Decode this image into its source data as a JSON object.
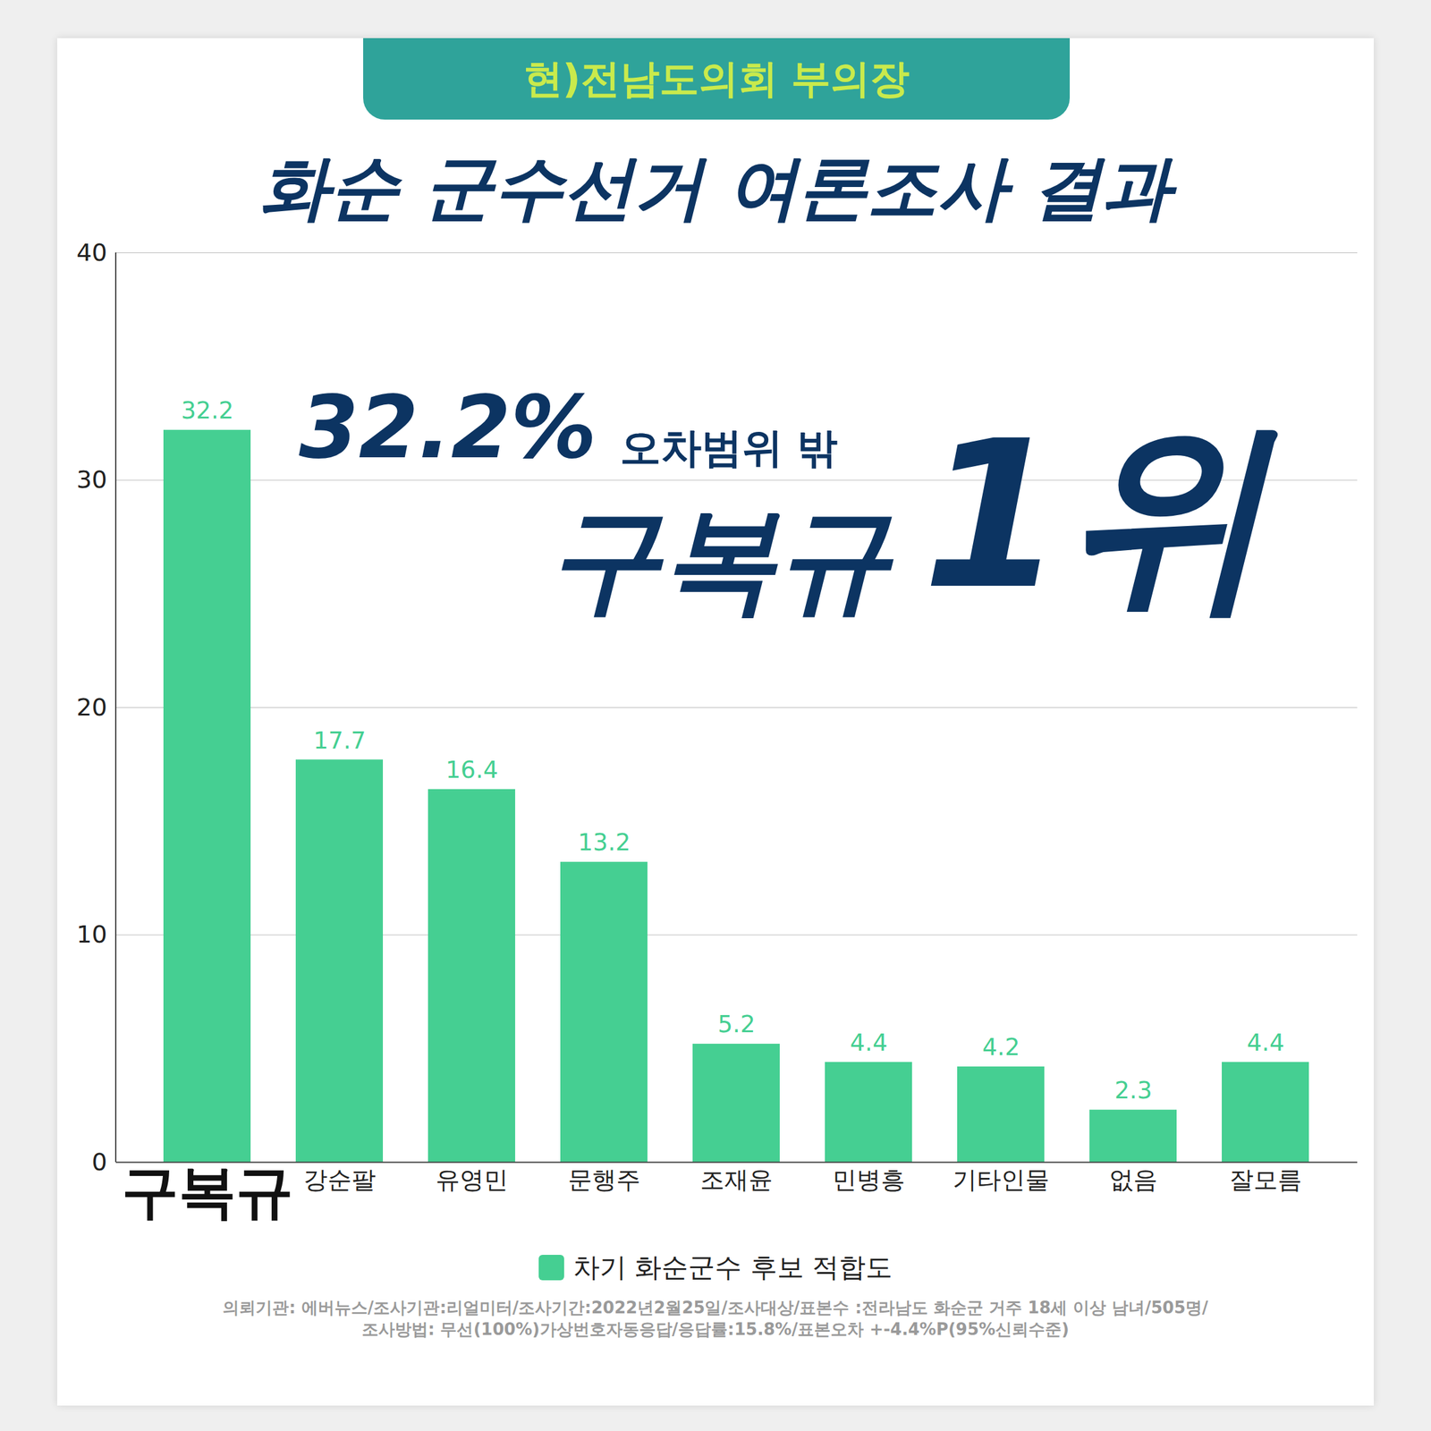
{
  "chart_data": {
    "type": "bar",
    "subtitle": "현)전남도의회 부의장",
    "title": "화순 군수선거 여론조사 결과",
    "annotations": [
      "32.2%",
      "오차범위 밖",
      "구복규",
      "1위"
    ],
    "categories": [
      "구복규",
      "강순팔",
      "유영민",
      "문행주",
      "조재윤",
      "민병흥",
      "기타인물",
      "없음",
      "잘모름"
    ],
    "series": [
      {
        "name": "차기 화순군수 후보 적합도",
        "color": "#45cf92",
        "values": [
          32.2,
          17.7,
          16.4,
          13.2,
          5.2,
          4.4,
          4.2,
          2.3,
          4.4
        ]
      }
    ],
    "ylim": [
      0,
      40
    ],
    "yticks": [
      0,
      10,
      20,
      30,
      40
    ],
    "grid": true,
    "data_labels": true,
    "legend": "bottom",
    "caption": [
      "의뢰기관: 에버뉴스/조사기관:리얼미터/조사기간:2022년2월25일/조사대상/표본수 :전라남도 화순군 거주 18세 이상 남녀/505명/",
      "조사방법: 무선(100%)가상번호자동응답/응답률:15.8%/표본오차 +-4.4%P(95%신뢰수준)"
    ]
  }
}
